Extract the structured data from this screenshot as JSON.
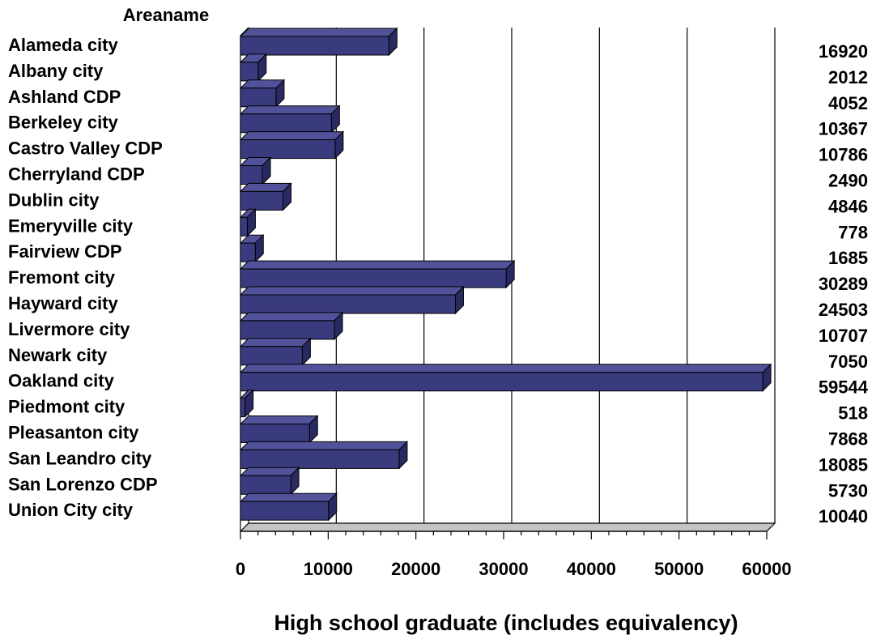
{
  "chart_data": {
    "type": "bar",
    "orientation": "horizontal",
    "style": "3d",
    "category_header": "Areaname",
    "xlabel": "High school graduate (includes equivalency)",
    "categories": [
      "Alameda city",
      "Albany city",
      "Ashland CDP",
      "Berkeley city",
      "Castro Valley CDP",
      "Cherryland CDP",
      "Dublin city",
      "Emeryville city",
      "Fairview CDP",
      "Fremont city",
      "Hayward city",
      "Livermore city",
      "Newark city",
      "Oakland city",
      "Piedmont city",
      "Pleasanton city",
      "San Leandro city",
      "San Lorenzo CDP",
      "Union City city"
    ],
    "values": [
      16920,
      2012,
      4052,
      10367,
      10786,
      2490,
      4846,
      778,
      1685,
      30289,
      24503,
      10707,
      7050,
      59544,
      518,
      7868,
      18085,
      5730,
      10040
    ],
    "value_labels": [
      "16920",
      "2012",
      "4052",
      "10367",
      "10786",
      "2490",
      "4846",
      "778",
      "1685",
      "30289",
      "24503",
      "10707",
      "7050",
      "59544",
      "518",
      "7868",
      "18085",
      "5730",
      "10040"
    ],
    "xticks": [
      0,
      10000,
      20000,
      30000,
      40000,
      50000,
      60000
    ],
    "xtick_labels": [
      "0",
      "10000",
      "20000",
      "30000",
      "40000",
      "50000",
      "60000"
    ],
    "xlim": [
      0,
      60000
    ],
    "grid": true,
    "legend": "none",
    "colors": {
      "bar_front": "#3a3a7e",
      "bar_top": "#52529a",
      "bar_side": "#2a2a62",
      "grid": "#000000",
      "floor": "#c4c4c4"
    }
  }
}
